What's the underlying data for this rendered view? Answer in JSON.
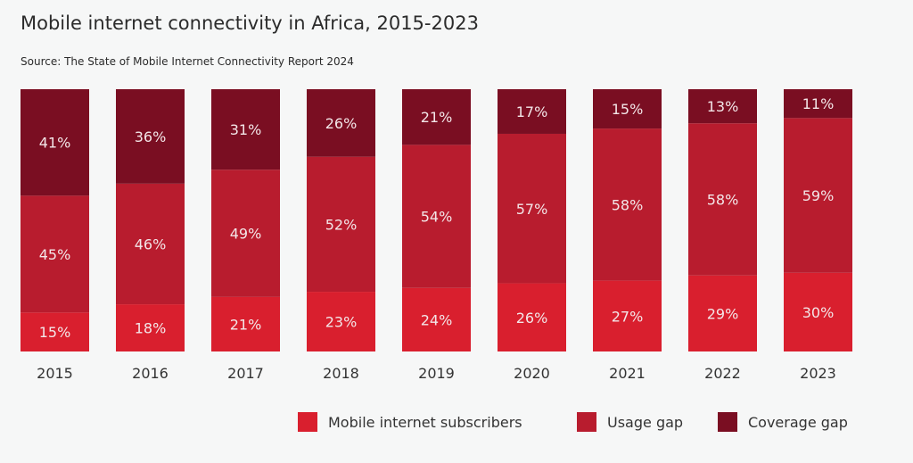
{
  "chart_data": {
    "type": "bar",
    "stacked": true,
    "title": "Mobile internet connectivity in Africa, 2015-2023",
    "subtitle": "Source: The State of Mobile Internet Connectivity Report 2024",
    "categories": [
      "2015",
      "2016",
      "2017",
      "2018",
      "2019",
      "2020",
      "2021",
      "2022",
      "2023"
    ],
    "unit": "%",
    "series": [
      {
        "name": "Mobile internet subscribers",
        "color": "#d91f2e",
        "values": [
          15,
          18,
          21,
          23,
          24,
          26,
          27,
          29,
          30
        ]
      },
      {
        "name": "Usage gap",
        "color": "#b81c2e",
        "values": [
          45,
          46,
          49,
          52,
          54,
          57,
          58,
          58,
          59
        ]
      },
      {
        "name": "Coverage gap",
        "color": "#7a0e22",
        "values": [
          41,
          36,
          31,
          26,
          21,
          17,
          15,
          13,
          11
        ]
      }
    ],
    "ylim": [
      0,
      100
    ],
    "grid": false,
    "legend_position": "bottom-right"
  }
}
